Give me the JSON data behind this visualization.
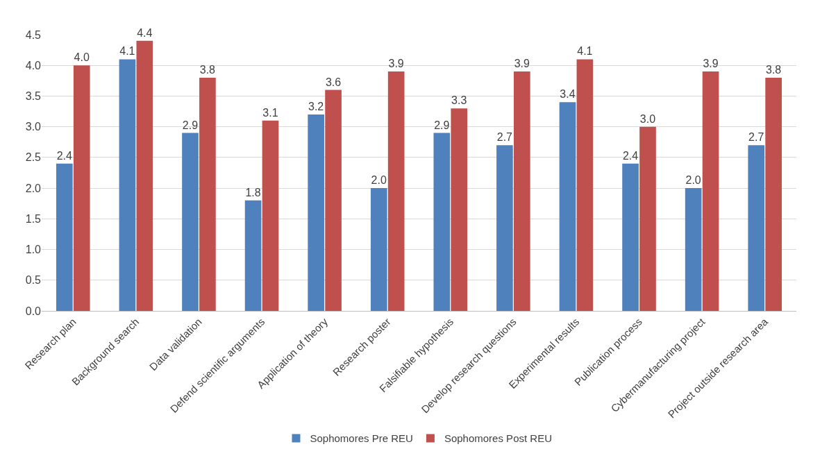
{
  "chart_data": {
    "type": "bar",
    "categories": [
      "Research plan",
      "Background search",
      "Data validation",
      "Defend scientific arguments",
      "Application of theory",
      "Research poster",
      "Falsifiable hypothesis",
      "Develop research questions",
      "Experimental results",
      "Publication process",
      "Cybermanufacturing project",
      "Project outside research area"
    ],
    "series": [
      {
        "name": "Sophomores Pre REU",
        "color": "#4f81bd",
        "values": [
          2.4,
          4.1,
          2.9,
          1.8,
          3.2,
          2.0,
          2.9,
          2.7,
          3.4,
          2.4,
          2.0,
          2.7
        ],
        "value_labels": [
          "2.4",
          "4.1",
          "2.9",
          "1.8",
          "3.2",
          "2.0",
          "2.9",
          "2.7",
          "3.4",
          "2.4",
          "2.0",
          "2.7"
        ]
      },
      {
        "name": "Sophomores Post REU",
        "color": "#c0504d",
        "values": [
          4.0,
          4.4,
          3.8,
          3.1,
          3.6,
          3.9,
          3.3,
          3.9,
          4.1,
          3.0,
          3.9,
          3.8
        ],
        "value_labels": [
          "4.0",
          "4.4",
          "3.8",
          "3.1",
          "3.6",
          "3.9",
          "3.3",
          "3.9",
          "4.1",
          "3.0",
          "3.9",
          "3.8"
        ]
      }
    ],
    "ylim": [
      0,
      4.5
    ],
    "yticks": [
      {
        "value": 0,
        "label": "0.0"
      },
      0.5,
      {
        "value": 1,
        "label": "1.0"
      },
      1.5,
      {
        "value": 2,
        "label": "2.0"
      },
      2.5,
      {
        "value": 3,
        "label": "3.0"
      },
      3.5,
      {
        "value": 4,
        "label": "4.0"
      },
      4.5
    ],
    "grid": "y",
    "legend": "bottom"
  }
}
